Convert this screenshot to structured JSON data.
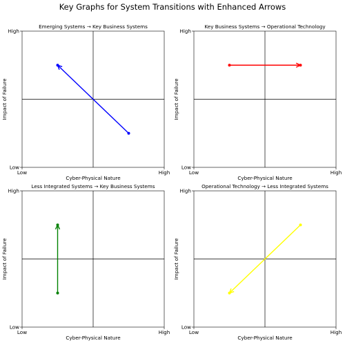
{
  "figure": {
    "title": "Key Graphs for System Transitions with Enhanced Arrows"
  },
  "chart_data": [
    {
      "type": "line",
      "title": "Emerging Systems → Key Business Systems",
      "xlabel": "Cyber-Physical Nature",
      "ylabel": "Impact of Failure",
      "xlim": [
        0,
        1
      ],
      "ylim": [
        0,
        1
      ],
      "x_ticks": [
        {
          "value": 0,
          "label": "Low"
        },
        {
          "value": 1,
          "label": "High"
        }
      ],
      "y_ticks": [
        {
          "value": 0,
          "label": "Low"
        },
        {
          "value": 1,
          "label": "High"
        }
      ],
      "center_lines": {
        "x": 0.5,
        "y": 0.5
      },
      "grid": false,
      "arrow": {
        "from": [
          0.75,
          0.25
        ],
        "to": [
          0.25,
          0.75
        ],
        "color": "#0000ff"
      }
    },
    {
      "type": "line",
      "title": "Key Business Systems → Operational Technology",
      "xlabel": "Cyber-Physical Nature",
      "ylabel": "Impact of Failure",
      "xlim": [
        0,
        1
      ],
      "ylim": [
        0,
        1
      ],
      "x_ticks": [
        {
          "value": 0,
          "label": "Low"
        },
        {
          "value": 1,
          "label": "High"
        }
      ],
      "y_ticks": [
        {
          "value": 0,
          "label": "Low"
        },
        {
          "value": 1,
          "label": "High"
        }
      ],
      "center_lines": {
        "x": 0.5,
        "y": 0.5
      },
      "grid": false,
      "arrow": {
        "from": [
          0.25,
          0.75
        ],
        "to": [
          0.75,
          0.75
        ],
        "color": "#ff0000"
      }
    },
    {
      "type": "line",
      "title": "Less Integrated Systems → Key Business Systems",
      "xlabel": "Cyber-Physical Nature",
      "ylabel": "Impact of Failure",
      "xlim": [
        0,
        1
      ],
      "ylim": [
        0,
        1
      ],
      "x_ticks": [
        {
          "value": 0,
          "label": "Low"
        },
        {
          "value": 1,
          "label": "High"
        }
      ],
      "y_ticks": [
        {
          "value": 0,
          "label": "Low"
        },
        {
          "value": 1,
          "label": "High"
        }
      ],
      "center_lines": {
        "x": 0.5,
        "y": 0.5
      },
      "grid": false,
      "arrow": {
        "from": [
          0.25,
          0.25
        ],
        "to": [
          0.25,
          0.75
        ],
        "color": "#008000"
      }
    },
    {
      "type": "line",
      "title": "Operational Technology → Less Integrated Systems",
      "xlabel": "Cyber-Physical Nature",
      "ylabel": "Impact of Failure",
      "xlim": [
        0,
        1
      ],
      "ylim": [
        0,
        1
      ],
      "x_ticks": [
        {
          "value": 0,
          "label": "Low"
        },
        {
          "value": 1,
          "label": "High"
        }
      ],
      "y_ticks": [
        {
          "value": 0,
          "label": "Low"
        },
        {
          "value": 1,
          "label": "High"
        }
      ],
      "center_lines": {
        "x": 0.5,
        "y": 0.5
      },
      "grid": false,
      "arrow": {
        "from": [
          0.75,
          0.75
        ],
        "to": [
          0.25,
          0.25
        ],
        "color": "#ffff00"
      }
    }
  ]
}
